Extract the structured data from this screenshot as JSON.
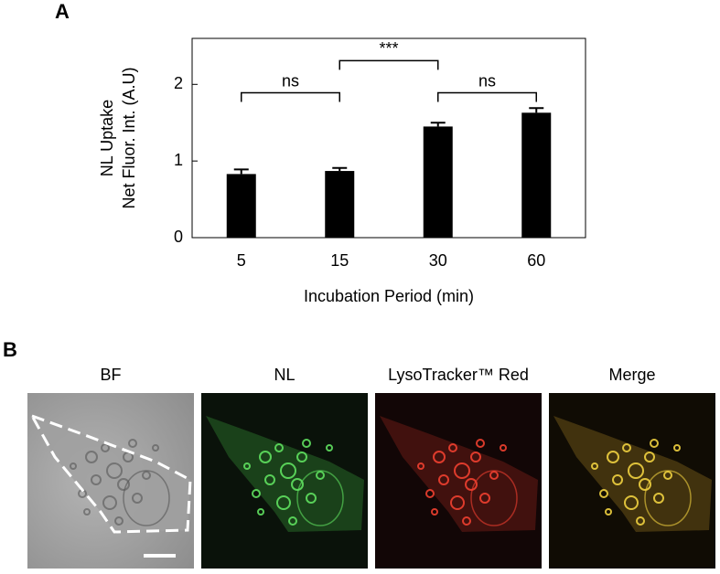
{
  "panel_labels": [
    "A",
    "B"
  ],
  "chart_data": {
    "type": "bar",
    "xlabel": "Incubation Period (min)",
    "ylabel": [
      "NL Uptake",
      "Net Fluor. Int. (A.U)"
    ],
    "categories": [
      "5",
      "15",
      "30",
      "60"
    ],
    "values": [
      0.83,
      0.87,
      1.45,
      1.63
    ],
    "errors": [
      0.06,
      0.04,
      0.05,
      0.06
    ],
    "color": "#000000",
    "ylim": [
      0,
      2.6
    ],
    "yticks": [
      0,
      1,
      2
    ],
    "annotations": [
      {
        "text": "ns",
        "between": [
          0,
          1
        ],
        "y": 1.89
      },
      {
        "text": "***",
        "between": [
          1,
          2
        ],
        "y": 2.31
      },
      {
        "text": "ns",
        "between": [
          2,
          3
        ],
        "y": 1.89
      }
    ]
  },
  "images": [
    {
      "title": "BF"
    },
    {
      "title": "NL"
    },
    {
      "title": "LysoTracker™ Red"
    },
    {
      "title": "Merge"
    }
  ]
}
